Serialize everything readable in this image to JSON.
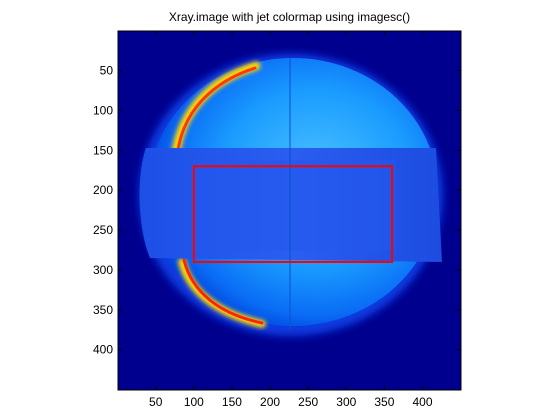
{
  "chart_data": {
    "type": "heatmap",
    "title": "Xray.image with jet colormap using imagesc()",
    "xlabel": "",
    "ylabel": "",
    "colormap": "jet",
    "x_ticks": [
      50,
      100,
      150,
      200,
      250,
      300,
      350,
      400
    ],
    "y_ticks": [
      50,
      100,
      150,
      200,
      250,
      300,
      350,
      400
    ],
    "xlim": [
      0.5,
      450.5
    ],
    "ylim": [
      0.5,
      450.5
    ],
    "y_direction": "reverse",
    "grid": false,
    "colors": {
      "background": "#00008f",
      "frame": "#000000",
      "roi": "#ff0000"
    },
    "roi_rectangle": {
      "x": [
        100,
        360
      ],
      "y": [
        170,
        290
      ]
    }
  }
}
